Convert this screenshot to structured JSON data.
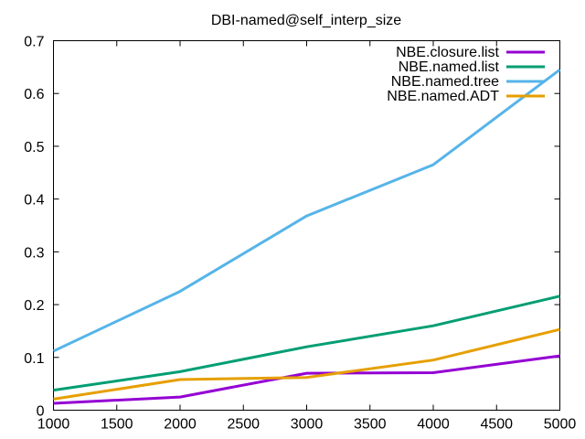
{
  "chart_data": {
    "type": "line",
    "title": "DBI-named@self_interp_size",
    "xlabel": "",
    "ylabel": "",
    "xlim": [
      1000,
      5000
    ],
    "ylim": [
      0,
      0.7
    ],
    "xticks": [
      1000,
      1500,
      2000,
      2500,
      3000,
      3500,
      4000,
      4500,
      5000
    ],
    "yticks": [
      0,
      0.1,
      0.2,
      0.3,
      0.4,
      0.5,
      0.6,
      0.7
    ],
    "xtick_labels": [
      "1000",
      "1500",
      "2000",
      "2500",
      "3000",
      "3500",
      "4000",
      "4500",
      "5000"
    ],
    "ytick_labels": [
      "0",
      "0.1",
      "0.2",
      "0.3",
      "0.4",
      "0.5",
      "0.6",
      "0.7"
    ],
    "grid": false,
    "legend_position": "top-right",
    "x": [
      1000,
      2000,
      3000,
      4000,
      5000
    ],
    "series": [
      {
        "name": "NBE.closure.list",
        "color": "#9400d3",
        "values": [
          0.013,
          0.025,
          0.07,
          0.071,
          0.103
        ]
      },
      {
        "name": "NBE.named.list",
        "color": "#009e73",
        "values": [
          0.038,
          0.073,
          0.12,
          0.16,
          0.216
        ]
      },
      {
        "name": "NBE.named.tree",
        "color": "#56b4e9",
        "values": [
          0.112,
          0.225,
          0.368,
          0.465,
          0.645
        ]
      },
      {
        "name": "NBE.named.ADT",
        "color": "#e69f00",
        "values": [
          0.021,
          0.058,
          0.062,
          0.095,
          0.153
        ]
      }
    ]
  }
}
